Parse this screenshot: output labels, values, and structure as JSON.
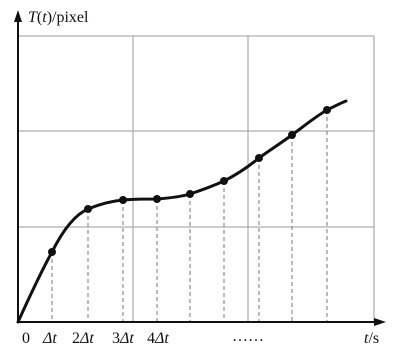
{
  "y_axis_label": {
    "prefix": "T",
    "paren_open": "(",
    "var": "t",
    "paren_close": ")/pixel"
  },
  "x_axis_label": {
    "var": "t",
    "unit": "/s"
  },
  "x_ticks": [
    {
      "coef": "0",
      "delta": ""
    },
    {
      "coef": "",
      "delta": "Δt"
    },
    {
      "coef": "2",
      "delta": "Δt"
    },
    {
      "coef": "3",
      "delta": "Δt"
    },
    {
      "coef": "4",
      "delta": "Δt"
    },
    {
      "coef": "……",
      "delta": ""
    }
  ],
  "colors": {
    "curve": "#111111",
    "grid": "#9a9a9a",
    "sample_lines": "#777777",
    "points": "#111111"
  }
}
